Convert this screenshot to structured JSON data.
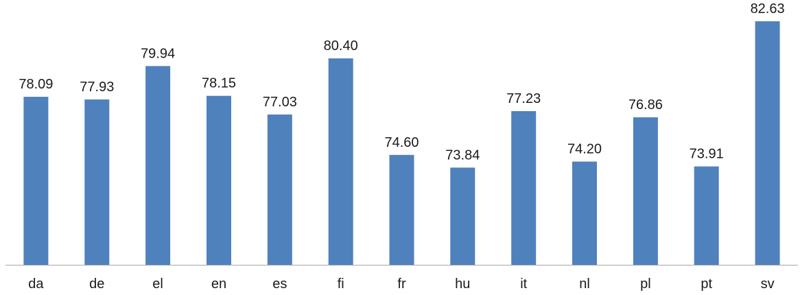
{
  "chart_data": {
    "type": "bar",
    "categories": [
      "da",
      "de",
      "el",
      "en",
      "es",
      "fi",
      "fr",
      "hu",
      "it",
      "nl",
      "pl",
      "pt",
      "sv"
    ],
    "series": [
      {
        "values": [
          78.09,
          77.93,
          79.94,
          78.15,
          77.03,
          80.4,
          74.6,
          73.84,
          77.23,
          74.2,
          76.86,
          73.91,
          82.63
        ],
        "labels": [
          "78.09",
          "77.93",
          "79.94",
          "78.15",
          "77.03",
          "80.40",
          "74.60",
          "73.84",
          "77.23",
          "74.20",
          "76.86",
          "73.91",
          "82.63"
        ]
      }
    ],
    "ylim": [
      68,
      83
    ],
    "grid": false,
    "colors": {
      "bar": "#4f81bd",
      "axis": "#a6a6a6",
      "text": "#1a1a1a"
    }
  }
}
